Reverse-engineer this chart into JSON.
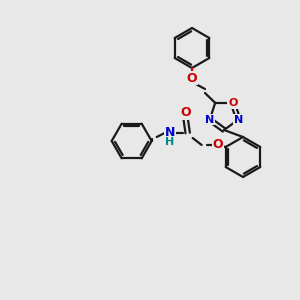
{
  "background_color": "#e8e8e8",
  "bond_color": "#1a1a1a",
  "atom_colors": {
    "O": "#cc0000",
    "N": "#0000cc",
    "H": "#008888"
  },
  "figsize": [
    3.0,
    3.0
  ],
  "dpi": 100,
  "lw": 1.6,
  "ring_r": 20,
  "oxad_r": 15
}
